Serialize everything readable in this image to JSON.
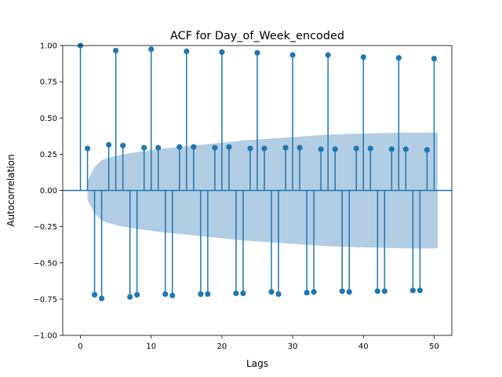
{
  "chart_data": {
    "type": "stem",
    "title": "ACF for Day_of_Week_encoded",
    "xlabel": "Lags",
    "ylabel": "Autocorrelation",
    "xlim": [
      -2.5,
      52.5
    ],
    "ylim": [
      -1.0,
      1.0
    ],
    "x_ticks": [
      0,
      10,
      20,
      30,
      40,
      50
    ],
    "y_ticks": [
      -1.0,
      -0.75,
      -0.5,
      -0.25,
      0.0,
      0.25,
      0.5,
      0.75,
      1.0
    ],
    "x_tick_labels": [
      "0",
      "10",
      "20",
      "30",
      "40",
      "50"
    ],
    "y_tick_labels": [
      "−1.00",
      "−0.75",
      "−0.50",
      "−0.25",
      "0.00",
      "0.25",
      "0.50",
      "0.75",
      "1.00"
    ],
    "grid": false,
    "lags": [
      0,
      1,
      2,
      3,
      4,
      5,
      6,
      7,
      8,
      9,
      10,
      11,
      12,
      13,
      14,
      15,
      16,
      17,
      18,
      19,
      20,
      21,
      22,
      23,
      24,
      25,
      26,
      27,
      28,
      29,
      30,
      31,
      32,
      33,
      34,
      35,
      36,
      37,
      38,
      39,
      40,
      41,
      42,
      43,
      44,
      45,
      46,
      47,
      48,
      49,
      50
    ],
    "acf": [
      1.0,
      0.29,
      -0.72,
      -0.745,
      0.315,
      0.965,
      0.31,
      -0.735,
      -0.72,
      0.295,
      0.975,
      0.295,
      -0.715,
      -0.725,
      0.3,
      0.96,
      0.3,
      -0.715,
      -0.715,
      0.295,
      0.955,
      0.3,
      -0.71,
      -0.71,
      0.29,
      0.95,
      0.29,
      -0.7,
      -0.715,
      0.295,
      0.935,
      0.295,
      -0.705,
      -0.7,
      0.285,
      0.935,
      0.285,
      -0.695,
      -0.7,
      0.29,
      0.92,
      0.29,
      -0.695,
      -0.695,
      0.285,
      0.915,
      0.285,
      -0.69,
      -0.69,
      0.28,
      0.91
    ],
    "confint_lags": [
      1,
      50.5
    ],
    "confint_upper": [
      0.065,
      0.16,
      0.21,
      0.24,
      0.265,
      0.285,
      0.3,
      0.315,
      0.33,
      0.345,
      0.355,
      0.365,
      0.375,
      0.385,
      0.39,
      0.395,
      0.4,
      0.4
    ],
    "confint_upper_lags": [
      1,
      2,
      3,
      5,
      8,
      11,
      14,
      17,
      20,
      23,
      26,
      29,
      32,
      35,
      38,
      42,
      46,
      50.5
    ],
    "colors": {
      "stem": "#1f77b4",
      "band": "#b3cde3",
      "zero": "#1f77b4"
    }
  }
}
